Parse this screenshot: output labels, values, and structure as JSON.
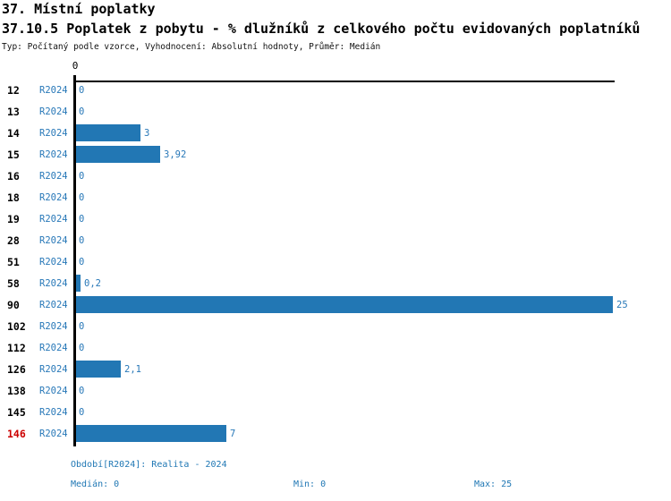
{
  "title": "37. Místní poplatky",
  "subtitle": "37.10.5 Poplatek z pobytu - % dlužníků z celkového počtu evidovaných poplatníků",
  "meta": "Typ: Počítaný podle vzorce, Vyhodnocení: Absolutní hodnoty, Průměr: Medián",
  "colors": {
    "bar": "#2277B4",
    "value_text": "#2878B8",
    "highlight": "#CC0000",
    "footer_text": "#1F77B4",
    "axis": "#000000"
  },
  "chart_data": {
    "type": "bar",
    "orientation": "horizontal",
    "title": "37.10.5 Poplatek z pobytu - % dlužníků z celkového počtu evidovaných poplatníků",
    "xlabel": "",
    "ylabel": "",
    "xlim": [
      0,
      25
    ],
    "axis_origin_label": "0",
    "series_label": "R2024",
    "grid": false,
    "legend": false,
    "categories": [
      "12",
      "13",
      "14",
      "15",
      "16",
      "18",
      "19",
      "28",
      "51",
      "58",
      "90",
      "102",
      "112",
      "126",
      "138",
      "145",
      "146"
    ],
    "values": [
      0,
      0,
      3,
      3.92,
      0,
      0,
      0,
      0,
      0,
      0.2,
      25,
      0,
      0,
      2.1,
      0,
      0,
      7
    ],
    "value_labels": [
      "0",
      "0",
      "3",
      "3,92",
      "0",
      "0",
      "0",
      "0",
      "0",
      "0,2",
      "25",
      "0",
      "0",
      "2,1",
      "0",
      "0",
      "7"
    ],
    "highlighted_category": "146"
  },
  "footer": {
    "period": "Období[R2024]: Realita - 2024",
    "median": "Medián: 0",
    "min": "Min: 0",
    "max": "Max: 25"
  }
}
